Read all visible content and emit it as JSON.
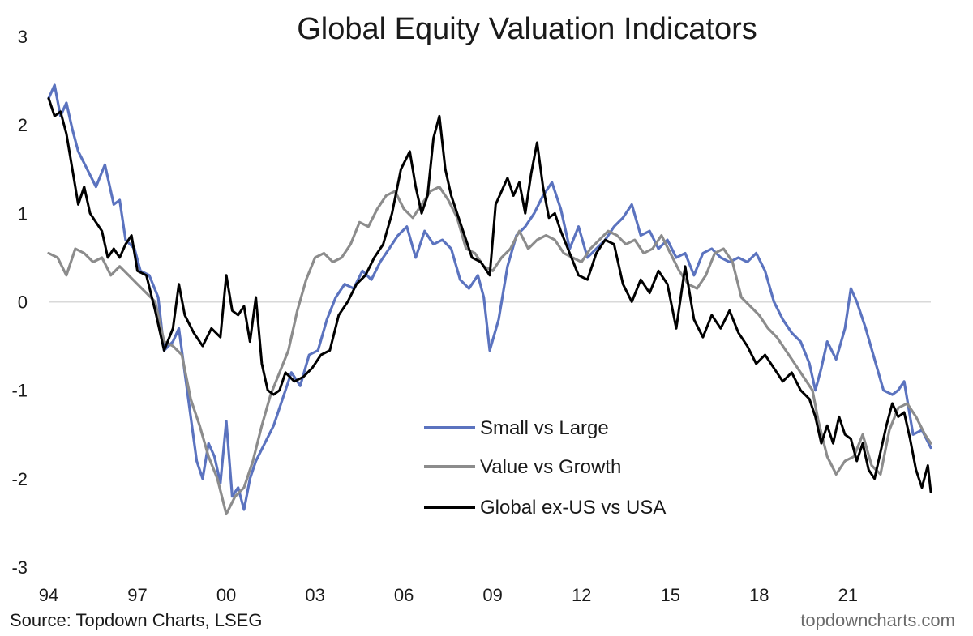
{
  "chart_data": {
    "type": "line",
    "title": "Global Equity Valuation Indicators",
    "xlabel": "",
    "ylabel": "",
    "xlim": [
      1994.0,
      2023.8
    ],
    "ylim": [
      -3,
      3
    ],
    "y_ticks": [
      3,
      2,
      1,
      0,
      -1,
      -2,
      -3
    ],
    "x_ticks": [
      {
        "value": 1994,
        "label": "94"
      },
      {
        "value": 1997,
        "label": "97"
      },
      {
        "value": 2000,
        "label": "00"
      },
      {
        "value": 2003,
        "label": "03"
      },
      {
        "value": 2006,
        "label": "06"
      },
      {
        "value": 2009,
        "label": "09"
      },
      {
        "value": 2012,
        "label": "12"
      },
      {
        "value": 2015,
        "label": "15"
      },
      {
        "value": 2018,
        "label": "18"
      },
      {
        "value": 2021,
        "label": "21"
      }
    ],
    "grid": false,
    "zero_line": true,
    "legend_position": "lower-middle",
    "series": [
      {
        "name": "Small vs Large",
        "color": "#5b73bf",
        "x": [
          1994.0,
          1994.2,
          1994.4,
          1994.6,
          1994.8,
          1995.0,
          1995.3,
          1995.6,
          1995.9,
          1996.2,
          1996.4,
          1996.6,
          1996.9,
          1997.1,
          1997.4,
          1997.7,
          1997.9,
          1998.2,
          1998.4,
          1998.6,
          1998.8,
          1999.0,
          1999.2,
          1999.4,
          1999.6,
          1999.8,
          2000.0,
          2000.2,
          2000.4,
          2000.6,
          2000.8,
          2001.0,
          2001.3,
          2001.6,
          2001.9,
          2002.2,
          2002.5,
          2002.8,
          2003.1,
          2003.4,
          2003.7,
          2004.0,
          2004.3,
          2004.6,
          2004.9,
          2005.2,
          2005.5,
          2005.8,
          2006.1,
          2006.4,
          2006.7,
          2007.0,
          2007.3,
          2007.6,
          2007.9,
          2008.2,
          2008.5,
          2008.7,
          2008.9,
          2009.2,
          2009.5,
          2009.8,
          2010.1,
          2010.4,
          2010.7,
          2011.0,
          2011.3,
          2011.6,
          2011.9,
          2012.2,
          2012.5,
          2012.8,
          2013.1,
          2013.4,
          2013.7,
          2014.0,
          2014.3,
          2014.6,
          2014.9,
          2015.2,
          2015.5,
          2015.8,
          2016.1,
          2016.4,
          2016.7,
          2017.0,
          2017.3,
          2017.6,
          2017.9,
          2018.2,
          2018.5,
          2018.8,
          2019.1,
          2019.4,
          2019.7,
          2019.9,
          2020.1,
          2020.3,
          2020.6,
          2020.9,
          2021.1,
          2021.3,
          2021.6,
          2021.9,
          2022.2,
          2022.5,
          2022.7,
          2022.9,
          2023.2,
          2023.5,
          2023.8
        ],
        "values": [
          2.3,
          2.45,
          2.1,
          2.25,
          1.95,
          1.7,
          1.5,
          1.3,
          1.55,
          1.1,
          1.15,
          0.7,
          0.6,
          0.35,
          0.3,
          0.05,
          -0.55,
          -0.45,
          -0.3,
          -0.8,
          -1.3,
          -1.8,
          -2.0,
          -1.6,
          -1.75,
          -2.05,
          -1.35,
          -2.2,
          -2.1,
          -2.35,
          -2.0,
          -1.8,
          -1.6,
          -1.4,
          -1.1,
          -0.8,
          -0.95,
          -0.6,
          -0.55,
          -0.2,
          0.05,
          0.2,
          0.15,
          0.35,
          0.25,
          0.45,
          0.6,
          0.75,
          0.85,
          0.5,
          0.8,
          0.65,
          0.7,
          0.6,
          0.25,
          0.15,
          0.3,
          0.05,
          -0.55,
          -0.2,
          0.4,
          0.75,
          0.85,
          1.0,
          1.2,
          1.35,
          1.05,
          0.6,
          0.85,
          0.5,
          0.6,
          0.7,
          0.85,
          0.95,
          1.1,
          0.75,
          0.8,
          0.6,
          0.7,
          0.5,
          0.55,
          0.3,
          0.55,
          0.6,
          0.5,
          0.45,
          0.5,
          0.45,
          0.55,
          0.35,
          0.0,
          -0.2,
          -0.35,
          -0.45,
          -0.7,
          -1.0,
          -0.75,
          -0.45,
          -0.65,
          -0.3,
          0.15,
          0.0,
          -0.3,
          -0.65,
          -1.0,
          -1.05,
          -1.0,
          -0.9,
          -1.5,
          -1.45,
          -1.65
        ]
      },
      {
        "name": "Value vs Growth",
        "color": "#8c8c8c",
        "x": [
          1994.0,
          1994.3,
          1994.6,
          1994.9,
          1995.2,
          1995.5,
          1995.8,
          1996.1,
          1996.4,
          1996.7,
          1997.0,
          1997.3,
          1997.6,
          1997.9,
          1998.2,
          1998.5,
          1998.8,
          1999.1,
          1999.4,
          1999.7,
          2000.0,
          2000.3,
          2000.6,
          2000.9,
          2001.2,
          2001.5,
          2001.8,
          2002.1,
          2002.4,
          2002.7,
          2003.0,
          2003.3,
          2003.6,
          2003.9,
          2004.2,
          2004.5,
          2004.8,
          2005.1,
          2005.4,
          2005.7,
          2006.0,
          2006.3,
          2006.6,
          2006.9,
          2007.2,
          2007.5,
          2007.8,
          2008.1,
          2008.4,
          2008.7,
          2009.0,
          2009.3,
          2009.6,
          2009.9,
          2010.2,
          2010.5,
          2010.8,
          2011.1,
          2011.4,
          2011.7,
          2012.0,
          2012.3,
          2012.6,
          2012.9,
          2013.2,
          2013.5,
          2013.8,
          2014.1,
          2014.4,
          2014.7,
          2015.0,
          2015.3,
          2015.6,
          2015.9,
          2016.2,
          2016.5,
          2016.8,
          2017.1,
          2017.4,
          2017.7,
          2018.0,
          2018.3,
          2018.6,
          2018.9,
          2019.2,
          2019.5,
          2019.8,
          2020.0,
          2020.3,
          2020.6,
          2020.9,
          2021.2,
          2021.5,
          2021.8,
          2022.1,
          2022.4,
          2022.7,
          2023.0,
          2023.3,
          2023.6,
          2023.8
        ],
        "values": [
          0.55,
          0.5,
          0.3,
          0.6,
          0.55,
          0.45,
          0.5,
          0.3,
          0.4,
          0.3,
          0.2,
          0.1,
          0.0,
          -0.45,
          -0.5,
          -0.6,
          -1.1,
          -1.4,
          -1.75,
          -2.0,
          -2.4,
          -2.2,
          -2.1,
          -1.8,
          -1.4,
          -1.05,
          -0.8,
          -0.55,
          -0.1,
          0.25,
          0.5,
          0.55,
          0.45,
          0.5,
          0.65,
          0.9,
          0.85,
          1.05,
          1.2,
          1.25,
          1.05,
          0.95,
          1.1,
          1.25,
          1.3,
          1.15,
          0.95,
          0.6,
          0.55,
          0.4,
          0.35,
          0.5,
          0.6,
          0.8,
          0.6,
          0.7,
          0.75,
          0.7,
          0.55,
          0.5,
          0.45,
          0.6,
          0.7,
          0.8,
          0.75,
          0.65,
          0.7,
          0.55,
          0.6,
          0.75,
          0.55,
          0.35,
          0.2,
          0.15,
          0.3,
          0.55,
          0.6,
          0.45,
          0.05,
          -0.05,
          -0.15,
          -0.3,
          -0.4,
          -0.55,
          -0.7,
          -0.85,
          -1.0,
          -1.35,
          -1.75,
          -1.95,
          -1.8,
          -1.75,
          -1.5,
          -1.85,
          -1.95,
          -1.45,
          -1.2,
          -1.15,
          -1.3,
          -1.5,
          -1.6
        ]
      },
      {
        "name": "Global ex-US vs USA",
        "color": "#000000",
        "x": [
          1994.0,
          1994.2,
          1994.4,
          1994.6,
          1994.8,
          1995.0,
          1995.2,
          1995.4,
          1995.6,
          1995.8,
          1996.0,
          1996.2,
          1996.4,
          1996.6,
          1996.8,
          1997.0,
          1997.3,
          1997.6,
          1997.9,
          1998.2,
          1998.4,
          1998.6,
          1998.9,
          1999.2,
          1999.5,
          1999.8,
          2000.0,
          2000.2,
          2000.4,
          2000.6,
          2000.8,
          2001.0,
          2001.2,
          2001.4,
          2001.6,
          2001.8,
          2002.0,
          2002.3,
          2002.6,
          2002.9,
          2003.2,
          2003.5,
          2003.8,
          2004.1,
          2004.4,
          2004.7,
          2005.0,
          2005.3,
          2005.6,
          2005.9,
          2006.2,
          2006.4,
          2006.6,
          2006.8,
          2007.0,
          2007.2,
          2007.4,
          2007.6,
          2007.8,
          2008.0,
          2008.3,
          2008.6,
          2008.9,
          2009.1,
          2009.3,
          2009.5,
          2009.7,
          2009.9,
          2010.1,
          2010.3,
          2010.5,
          2010.7,
          2010.9,
          2011.1,
          2011.3,
          2011.6,
          2011.9,
          2012.2,
          2012.5,
          2012.8,
          2013.1,
          2013.4,
          2013.7,
          2014.0,
          2014.3,
          2014.6,
          2014.9,
          2015.2,
          2015.5,
          2015.8,
          2016.1,
          2016.4,
          2016.7,
          2017.0,
          2017.3,
          2017.6,
          2017.9,
          2018.2,
          2018.5,
          2018.8,
          2019.1,
          2019.4,
          2019.7,
          2019.9,
          2020.1,
          2020.3,
          2020.5,
          2020.7,
          2020.9,
          2021.1,
          2021.3,
          2021.5,
          2021.7,
          2021.9,
          2022.1,
          2022.3,
          2022.5,
          2022.7,
          2022.9,
          2023.1,
          2023.3,
          2023.5,
          2023.7,
          2023.8
        ],
        "values": [
          2.3,
          2.1,
          2.15,
          1.9,
          1.5,
          1.1,
          1.3,
          1.0,
          0.9,
          0.8,
          0.5,
          0.6,
          0.5,
          0.65,
          0.75,
          0.35,
          0.3,
          -0.1,
          -0.55,
          -0.3,
          0.2,
          -0.15,
          -0.35,
          -0.5,
          -0.3,
          -0.4,
          0.3,
          -0.1,
          -0.15,
          -0.05,
          -0.45,
          0.05,
          -0.7,
          -1.0,
          -1.05,
          -1.0,
          -0.8,
          -0.9,
          -0.85,
          -0.75,
          -0.6,
          -0.55,
          -0.15,
          0.0,
          0.2,
          0.3,
          0.5,
          0.65,
          1.0,
          1.5,
          1.7,
          1.3,
          1.0,
          1.2,
          1.85,
          2.1,
          1.5,
          1.2,
          1.0,
          0.8,
          0.5,
          0.45,
          0.3,
          1.1,
          1.25,
          1.4,
          1.2,
          1.35,
          1.0,
          1.45,
          1.8,
          1.3,
          0.95,
          1.0,
          0.8,
          0.55,
          0.3,
          0.25,
          0.55,
          0.7,
          0.65,
          0.2,
          0.0,
          0.25,
          0.1,
          0.35,
          0.2,
          -0.3,
          0.4,
          -0.2,
          -0.4,
          -0.15,
          -0.3,
          -0.1,
          -0.35,
          -0.5,
          -0.7,
          -0.6,
          -0.75,
          -0.9,
          -0.8,
          -1.0,
          -1.1,
          -1.3,
          -1.6,
          -1.4,
          -1.6,
          -1.3,
          -1.5,
          -1.55,
          -1.8,
          -1.6,
          -1.9,
          -2.0,
          -1.7,
          -1.4,
          -1.15,
          -1.3,
          -1.25,
          -1.55,
          -1.9,
          -2.1,
          -1.85,
          -2.15
        ]
      }
    ]
  },
  "footer": {
    "source": "Source: Topdown Charts, LSEG",
    "brand": "topdowncharts.com"
  }
}
